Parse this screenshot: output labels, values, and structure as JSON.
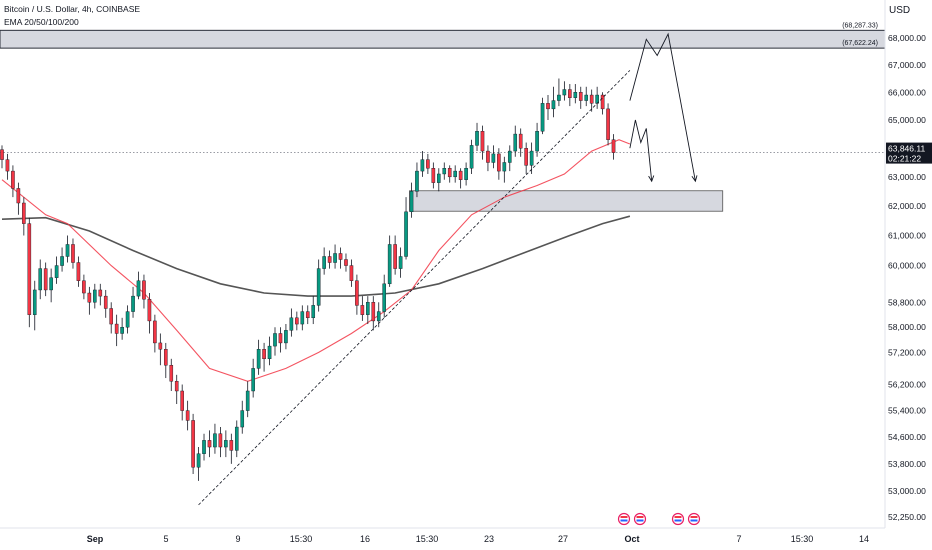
{
  "header": {
    "symbol": "Bitcoin / U.S. Dollar, 4h, COINBASE",
    "indicator": "EMA 20/50/100/200",
    "currency": "USD"
  },
  "colors": {
    "up": "#089981",
    "down": "#f23645",
    "ema_fast": "#f23645",
    "ema_slow": "#555555",
    "zone_fill": "#d1d4dc",
    "price_line": "#131722"
  },
  "price_label": {
    "price": "63,846.11",
    "countdown": "02:21:22"
  },
  "zones": [
    {
      "top": 68287.33,
      "bottom": 67622.24,
      "top_label": "(68,287.33)",
      "bottom_label": "(67,622.24)"
    },
    {
      "top": 62520,
      "bottom": 61820
    }
  ],
  "chart_data": {
    "type": "candlestick",
    "timeframe": "4h",
    "y_scale": "log",
    "current_price": 63846.11,
    "y_ticks": [
      "68,000.00",
      "67,000.00",
      "66,000.00",
      "65,000.00",
      "63,000.00",
      "62,000.00",
      "61,000.00",
      "60,000.00",
      "58,800.00",
      "58,000.00",
      "57,200.00",
      "56,200.00",
      "55,400.00",
      "54,600.00",
      "53,800.00",
      "53,000.00",
      "52,250.00"
    ],
    "y_tick_values": [
      68000,
      67000,
      66000,
      65000,
      63000,
      62000,
      61000,
      60000,
      58800,
      58000,
      57200,
      56200,
      55400,
      54600,
      53800,
      53000,
      52250
    ],
    "x_ticks": [
      "Sep",
      "5",
      "9",
      "15:30",
      "16",
      "15:30",
      "23",
      "27",
      "Oct",
      "7",
      "15:30",
      "14"
    ],
    "candles": [
      [
        63950,
        63600,
        64100,
        63300
      ],
      [
        63600,
        63200,
        63800,
        62900
      ],
      [
        63200,
        62600,
        63400,
        62300
      ],
      [
        62600,
        62100,
        62800,
        61700
      ],
      [
        62100,
        61400,
        62300,
        61000
      ],
      [
        61400,
        58400,
        61600,
        58000
      ],
      [
        58400,
        59200,
        59500,
        57900
      ],
      [
        59200,
        59900,
        60200,
        58900
      ],
      [
        59900,
        59200,
        60100,
        59000
      ],
      [
        59200,
        59600,
        59900,
        58800
      ],
      [
        59600,
        60000,
        60300,
        59400
      ],
      [
        60000,
        60300,
        60600,
        59800
      ],
      [
        60300,
        60700,
        61000,
        60100
      ],
      [
        60700,
        60100,
        60900,
        59900
      ],
      [
        60100,
        59500,
        60300,
        59300
      ],
      [
        59500,
        59100,
        59700,
        58900
      ],
      [
        59100,
        58800,
        59300,
        58400
      ],
      [
        58800,
        59200,
        59400,
        58600
      ],
      [
        59200,
        59000,
        59400,
        58700
      ],
      [
        59000,
        58600,
        59200,
        58300
      ],
      [
        58600,
        58100,
        58800,
        57800
      ],
      [
        58100,
        57800,
        58400,
        57400
      ],
      [
        57800,
        58000,
        58300,
        57600
      ],
      [
        58000,
        58500,
        58700,
        57800
      ],
      [
        58500,
        59000,
        59300,
        58300
      ],
      [
        59000,
        59500,
        59800,
        58900
      ],
      [
        59500,
        58900,
        59700,
        58600
      ],
      [
        58900,
        58200,
        59100,
        57800
      ],
      [
        58200,
        57500,
        58400,
        57200
      ],
      [
        57500,
        57300,
        57800,
        56800
      ],
      [
        57300,
        56800,
        57500,
        56400
      ],
      [
        56800,
        56300,
        57000,
        56000
      ],
      [
        56300,
        56000,
        56500,
        55600
      ],
      [
        56000,
        55400,
        56200,
        55100
      ],
      [
        55400,
        55100,
        55700,
        54800
      ],
      [
        55100,
        53700,
        55300,
        53500
      ],
      [
        53700,
        54100,
        54300,
        53300
      ],
      [
        54100,
        54500,
        54700,
        53900
      ],
      [
        54500,
        54300,
        54800,
        54000
      ],
      [
        54300,
        54700,
        55000,
        54100
      ],
      [
        54700,
        54300,
        54900,
        54000
      ],
      [
        54300,
        54500,
        54800,
        54000
      ],
      [
        54500,
        54200,
        54700,
        53800
      ],
      [
        54200,
        54900,
        55100,
        54000
      ],
      [
        54900,
        55400,
        55700,
        54700
      ],
      [
        55400,
        56000,
        56300,
        55200
      ],
      [
        56000,
        56700,
        57000,
        55800
      ],
      [
        56700,
        57300,
        57600,
        56500
      ],
      [
        57300,
        57000,
        57500,
        56600
      ],
      [
        57000,
        57400,
        57700,
        56800
      ],
      [
        57400,
        57800,
        58000,
        57100
      ],
      [
        57800,
        57500,
        58000,
        57200
      ],
      [
        57500,
        57900,
        58100,
        57300
      ],
      [
        57900,
        58300,
        58600,
        57700
      ],
      [
        58300,
        58100,
        58500,
        57900
      ],
      [
        58100,
        58500,
        58700,
        57900
      ],
      [
        58500,
        58300,
        58700,
        58100
      ],
      [
        58300,
        58700,
        59000,
        58100
      ],
      [
        58700,
        59900,
        60200,
        58500
      ],
      [
        59900,
        60300,
        60600,
        59700
      ],
      [
        60300,
        60100,
        60500,
        59900
      ],
      [
        60100,
        60400,
        60700,
        59900
      ],
      [
        60400,
        60200,
        60600,
        59900
      ],
      [
        60200,
        60000,
        60400,
        59800
      ],
      [
        60000,
        59500,
        60200,
        59300
      ],
      [
        59500,
        58700,
        59700,
        58400
      ],
      [
        58700,
        58400,
        59000,
        58200
      ],
      [
        58400,
        58800,
        59000,
        58100
      ],
      [
        58800,
        58200,
        59000,
        57900
      ],
      [
        58200,
        58500,
        58800,
        58000
      ],
      [
        58500,
        59400,
        59700,
        58300
      ],
      [
        59400,
        60700,
        61000,
        59300
      ],
      [
        60700,
        59900,
        61000,
        59700
      ],
      [
        59900,
        60300,
        60600,
        59600
      ],
      [
        60300,
        61800,
        62300,
        60200
      ],
      [
        61800,
        62500,
        62800,
        61600
      ],
      [
        62500,
        63200,
        63500,
        62300
      ],
      [
        63200,
        63600,
        63900,
        63000
      ],
      [
        63600,
        63300,
        63800,
        63100
      ],
      [
        63300,
        62800,
        63500,
        62600
      ],
      [
        62800,
        63100,
        63300,
        62500
      ],
      [
        63100,
        63300,
        63500,
        62900
      ],
      [
        63300,
        63000,
        63400,
        62800
      ],
      [
        63000,
        63200,
        63400,
        62800
      ],
      [
        63200,
        62900,
        63300,
        62600
      ],
      [
        62900,
        63300,
        63500,
        62700
      ],
      [
        63300,
        64100,
        64300,
        63100
      ],
      [
        64100,
        64600,
        64900,
        63900
      ],
      [
        64600,
        63900,
        64800,
        63600
      ],
      [
        63900,
        63500,
        64100,
        63200
      ],
      [
        63500,
        63800,
        64100,
        63300
      ],
      [
        63800,
        63200,
        64000,
        62900
      ],
      [
        63200,
        63500,
        63700,
        62800
      ],
      [
        63500,
        63900,
        64100,
        63200
      ],
      [
        63900,
        64500,
        64800,
        63700
      ],
      [
        64500,
        64000,
        64700,
        63700
      ],
      [
        64000,
        63400,
        64200,
        63100
      ],
      [
        63400,
        63900,
        64200,
        63100
      ],
      [
        63900,
        64600,
        64900,
        63700
      ],
      [
        64600,
        65600,
        65800,
        64500
      ],
      [
        65600,
        65400,
        65900,
        65000
      ],
      [
        65400,
        65700,
        66200,
        65100
      ],
      [
        65700,
        65900,
        66500,
        65500
      ],
      [
        65900,
        66100,
        66400,
        65700
      ],
      [
        66100,
        65800,
        66300,
        65500
      ],
      [
        65800,
        66000,
        66300,
        65600
      ],
      [
        66000,
        65700,
        66200,
        65400
      ],
      [
        65700,
        65900,
        66200,
        65500
      ],
      [
        65900,
        65600,
        66100,
        65300
      ],
      [
        65600,
        65900,
        66200,
        65400
      ],
      [
        65900,
        65400,
        66000,
        65200
      ],
      [
        65400,
        64300,
        65600,
        64100
      ],
      [
        64300,
        63846,
        64500,
        63600
      ]
    ],
    "ema_red": [
      [
        0,
        62900
      ],
      [
        8,
        61700
      ],
      [
        12,
        61400
      ],
      [
        20,
        60000
      ],
      [
        26,
        59100
      ],
      [
        32,
        57900
      ],
      [
        38,
        56700
      ],
      [
        45,
        56300
      ],
      [
        52,
        56700
      ],
      [
        58,
        57200
      ],
      [
        64,
        57800
      ],
      [
        70,
        58500
      ],
      [
        75,
        59200
      ],
      [
        80,
        60500
      ],
      [
        86,
        61700
      ],
      [
        92,
        62300
      ],
      [
        98,
        62700
      ],
      [
        103,
        63100
      ],
      [
        108,
        63900
      ],
      [
        113,
        64300
      ],
      [
        115,
        64150
      ]
    ],
    "ema_dark": [
      [
        0,
        61550
      ],
      [
        8,
        61600
      ],
      [
        16,
        61150
      ],
      [
        24,
        60500
      ],
      [
        32,
        59900
      ],
      [
        40,
        59400
      ],
      [
        48,
        59100
      ],
      [
        56,
        59000
      ],
      [
        64,
        59000
      ],
      [
        72,
        59100
      ],
      [
        80,
        59400
      ],
      [
        88,
        59900
      ],
      [
        96,
        60450
      ],
      [
        104,
        61000
      ],
      [
        110,
        61400
      ],
      [
        115,
        61650
      ]
    ],
    "trendline": [
      [
        36,
        52600
      ],
      [
        115,
        66800
      ]
    ],
    "projection_a": [
      [
        115,
        65700
      ],
      [
        118,
        67950
      ],
      [
        120,
        67350
      ],
      [
        122,
        68150
      ],
      [
        127,
        62850
      ]
    ],
    "projection_b": [
      [
        115,
        64000
      ],
      [
        116,
        65000
      ],
      [
        117,
        64200
      ],
      [
        118,
        64700
      ],
      [
        119,
        62850
      ]
    ]
  }
}
